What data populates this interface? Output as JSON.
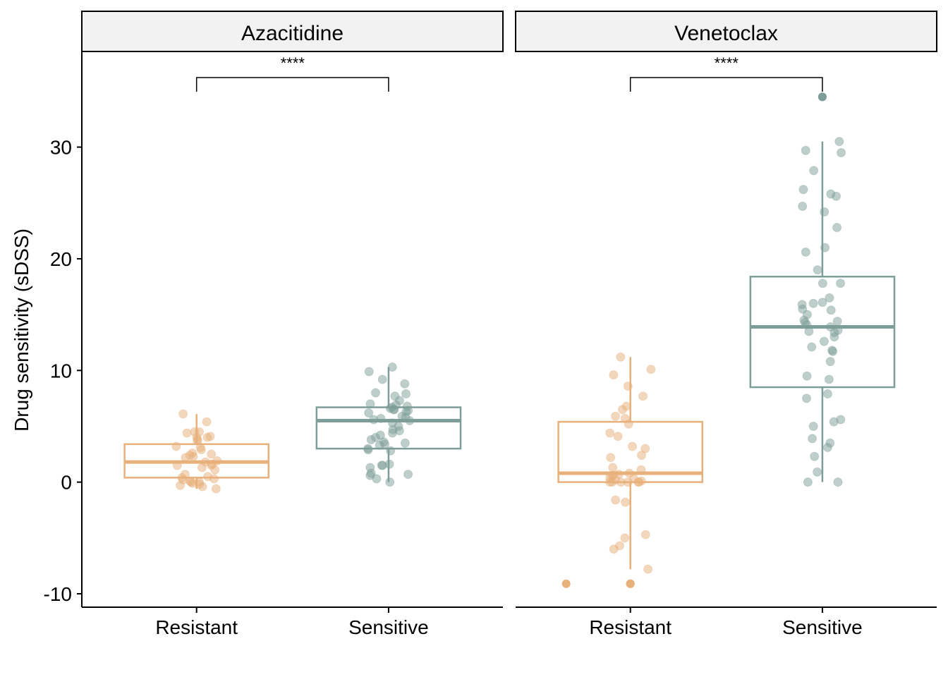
{
  "chart_data": {
    "type": "box",
    "ylabel": "Drug sensitivity (sDSS)",
    "xlabel": "",
    "ylim": [
      -11.2,
      38.5
    ],
    "yticks": [
      -10,
      0,
      10,
      20,
      30
    ],
    "ytick_labels": [
      "-10",
      "0",
      "10",
      "20",
      "30"
    ],
    "categories": [
      "Resistant",
      "Sensitive"
    ],
    "colors": {
      "Resistant": "#e8b07a",
      "Sensitive": "#7d9e98"
    },
    "grid": false,
    "legend": "none",
    "panels": [
      {
        "title": "Azacitidine",
        "significance": "****",
        "groups": [
          {
            "name": "Resistant",
            "box": {
              "q1": 0.4,
              "median": 1.8,
              "q3": 3.4,
              "whisker_low": -0.6,
              "whisker_high": 6.1
            },
            "outliers": [],
            "points": [
              6.1,
              5.4,
              4.5,
              4.5,
              4.4,
              4.1,
              4.0,
              4.0,
              3.8,
              3.7,
              3.2,
              3.1,
              2.9,
              2.6,
              2.5,
              2.4,
              2.3,
              2.2,
              1.9,
              1.8,
              1.6,
              1.5,
              1.5,
              1.3,
              1.1,
              0.7,
              0.5,
              0.4,
              0.3,
              0.2,
              0.1,
              0.0,
              0.0,
              -0.1,
              -0.2,
              -0.3,
              -0.4,
              -0.6
            ]
          },
          {
            "name": "Sensitive",
            "box": {
              "q1": 3.0,
              "median": 5.5,
              "q3": 6.7,
              "whisker_low": 0.0,
              "whisker_high": 10.3
            },
            "outliers": [],
            "points": [
              10.3,
              9.9,
              9.2,
              8.8,
              8.0,
              7.9,
              7.7,
              7.3,
              7.0,
              6.9,
              6.8,
              6.7,
              6.6,
              6.5,
              6.5,
              6.4,
              6.3,
              6.2,
              5.9,
              5.8,
              5.7,
              5.6,
              5.5,
              5.3,
              5.0,
              4.7,
              4.6,
              4.4,
              4.2,
              4.0,
              3.8,
              3.6,
              3.5,
              3.4,
              3.3,
              3.0,
              2.9,
              2.8,
              1.6,
              1.5,
              1.5,
              1.3,
              0.8,
              0.7,
              0.6,
              0.3,
              0.0
            ]
          }
        ]
      },
      {
        "title": "Venetoclax",
        "significance": "****",
        "groups": [
          {
            "name": "Resistant",
            "box": {
              "q1": 0.0,
              "median": 0.8,
              "q3": 5.4,
              "whisker_low": -7.8,
              "whisker_high": 11.2
            },
            "outliers": [
              -9.1,
              -9.1,
              -9.1,
              -9.1
            ],
            "points": [
              11.2,
              10.1,
              9.6,
              8.6,
              7.7,
              6.8,
              6.5,
              5.9,
              5.7,
              5.2,
              4.4,
              4.1,
              3.2,
              3.0,
              2.4,
              2.2,
              1.3,
              1.1,
              0.8,
              0.7,
              0.6,
              0.5,
              0.4,
              0.3,
              0.2,
              0.1,
              0.0,
              0.0,
              0.0,
              0.0,
              0.0,
              0.0,
              -1.6,
              -1.8,
              -4.7,
              -5.0,
              -5.7,
              -6.0,
              -7.8
            ]
          },
          {
            "name": "Sensitive",
            "box": {
              "q1": 8.5,
              "median": 13.9,
              "q3": 18.4,
              "whisker_low": 0.0,
              "whisker_high": 30.5
            },
            "outliers": [
              34.5,
              34.5
            ],
            "points": [
              30.5,
              29.7,
              29.5,
              27.9,
              26.2,
              25.8,
              25.6,
              24.7,
              24.2,
              22.8,
              21.0,
              20.6,
              19.0,
              17.8,
              17.8,
              16.5,
              16.1,
              16.0,
              15.9,
              15.5,
              15.4,
              15.0,
              14.5,
              14.4,
              14.3,
              14.1,
              13.9,
              13.6,
              13.5,
              13.4,
              13.0,
              12.6,
              12.1,
              11.8,
              11.7,
              10.8,
              9.5,
              9.2,
              7.9,
              7.5,
              5.6,
              5.4,
              5.0,
              3.9,
              3.5,
              3.1,
              2.3,
              0.9,
              0.0,
              0.0
            ]
          }
        ]
      }
    ]
  }
}
